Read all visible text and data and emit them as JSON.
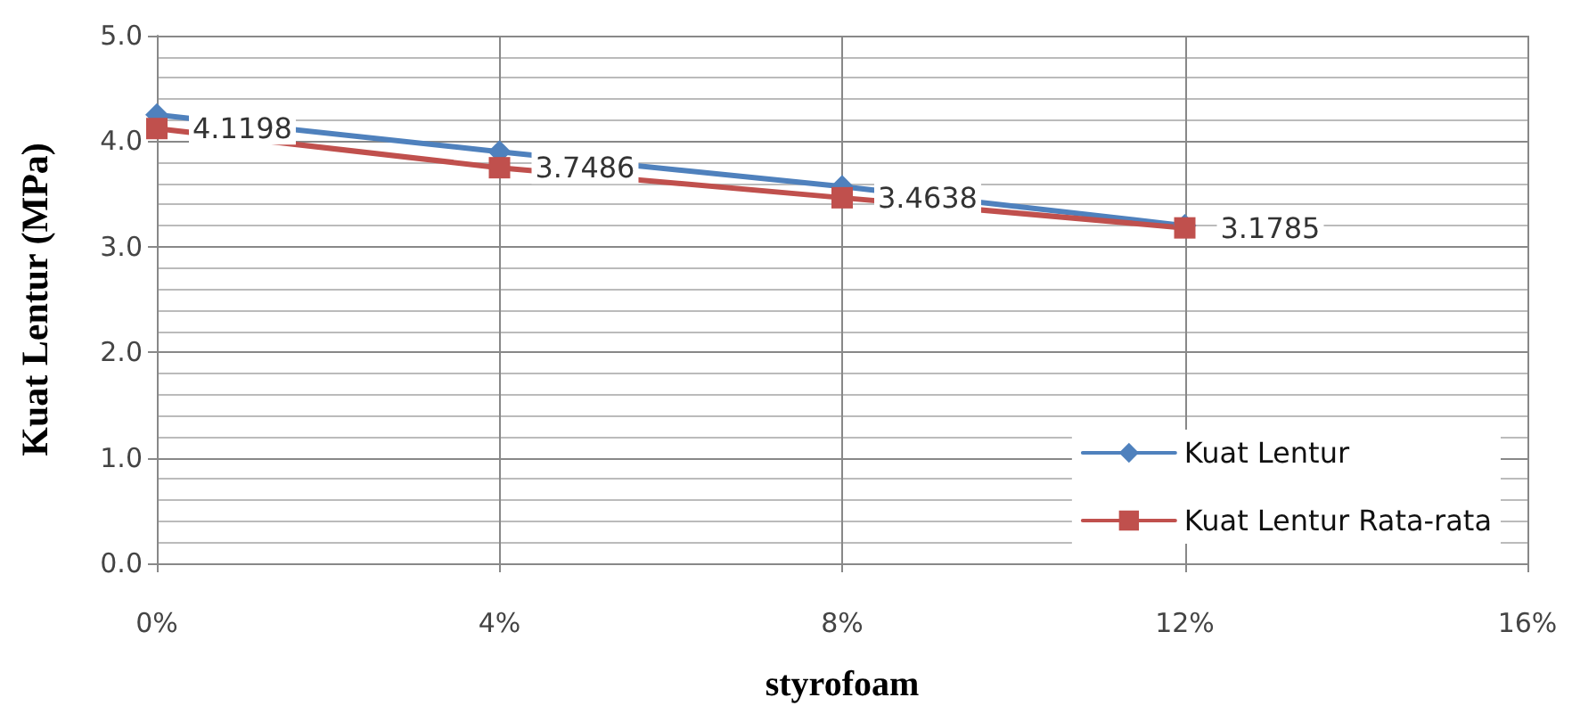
{
  "chart_data": {
    "type": "line",
    "xlabel": "styrofoam",
    "ylabel": "Kuat Lentur (MPa)",
    "x": [
      0,
      4,
      8,
      12
    ],
    "series": [
      {
        "name": "Kuat Lentur",
        "color": "#4f81bd",
        "marker": "diamond",
        "values": [
          4.25,
          3.9,
          3.57,
          3.2
        ]
      },
      {
        "name": "Kuat Lentur Rata-rata",
        "color": "#c0504d",
        "marker": "square",
        "values": [
          4.1198,
          3.7486,
          3.4638,
          3.1785
        ],
        "value_labels": [
          "4.1198",
          "3.7486",
          "3.4638",
          "3.1785"
        ]
      }
    ],
    "xlim": [
      0,
      16
    ],
    "xticks": [
      {
        "value": 0,
        "label": "0%"
      },
      {
        "value": 4,
        "label": "4%"
      },
      {
        "value": 8,
        "label": "8%"
      },
      {
        "value": 12,
        "label": "12%"
      },
      {
        "value": 16,
        "label": "16%"
      }
    ],
    "ylim": [
      0,
      5
    ],
    "yticks": [
      {
        "value": 0,
        "label": "0.0"
      },
      {
        "value": 1,
        "label": "1.0"
      },
      {
        "value": 2,
        "label": "2.0"
      },
      {
        "value": 3,
        "label": "3.0"
      },
      {
        "value": 4,
        "label": "4.0"
      },
      {
        "value": 5,
        "label": "5.0"
      }
    ],
    "grid": true,
    "legend": "bottom right",
    "line_style": "solid"
  }
}
